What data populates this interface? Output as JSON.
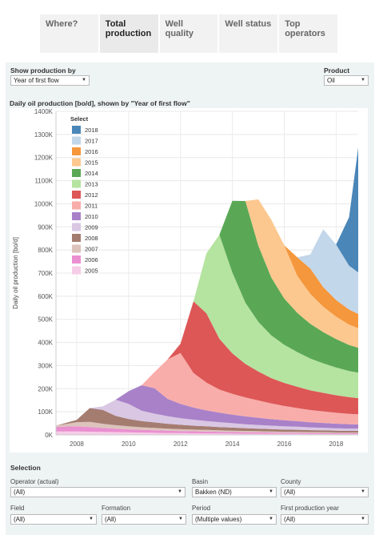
{
  "tabs": [
    {
      "label": "Where?",
      "active": false
    },
    {
      "label": "Total production",
      "active": true
    },
    {
      "label": "Well quality",
      "active": false
    },
    {
      "label": "Well status",
      "active": false
    },
    {
      "label": "Top operators",
      "active": false
    }
  ],
  "controls": {
    "show_production_by_label": "Show production by",
    "show_production_by_value": "Year of first flow",
    "product_label": "Product",
    "product_value": "Oil"
  },
  "chart_title": "Daily oil production [bo/d], shown by \"Year of first flow\"",
  "legend": {
    "title": "Select",
    "items": [
      {
        "label": "2018",
        "color": "#4a86b8"
      },
      {
        "label": "2017",
        "color": "#c3d7ea"
      },
      {
        "label": "2016",
        "color": "#f5973c"
      },
      {
        "label": "2015",
        "color": "#fcc88f"
      },
      {
        "label": "2014",
        "color": "#5aa855"
      },
      {
        "label": "2013",
        "color": "#b5e3a0"
      },
      {
        "label": "2012",
        "color": "#dd5757"
      },
      {
        "label": "2011",
        "color": "#f8adaa"
      },
      {
        "label": "2010",
        "color": "#a881c9"
      },
      {
        "label": "2009",
        "color": "#d9c7e4"
      },
      {
        "label": "2008",
        "color": "#a47c70"
      },
      {
        "label": "2007",
        "color": "#dcc3bc"
      },
      {
        "label": "2006",
        "color": "#ea8fd0"
      },
      {
        "label": "2005",
        "color": "#f6cde7"
      }
    ]
  },
  "chart_data": {
    "type": "area",
    "stacked": true,
    "title": "Daily oil production [bo/d], shown by \"Year of first flow\"",
    "ylabel": "Daily oil production [bo/d]",
    "xlabel": "",
    "ylim": [
      0,
      1400000
    ],
    "xlim": [
      2007.2,
      2018.85
    ],
    "y_ticks": [
      0,
      100000,
      200000,
      300000,
      400000,
      500000,
      600000,
      700000,
      800000,
      900000,
      1000000,
      1100000,
      1200000,
      1300000,
      1400000
    ],
    "y_tick_labels": [
      "0K",
      "100K",
      "200K",
      "300K",
      "400K",
      "500K",
      "600K",
      "700K",
      "800K",
      "900K",
      "1000K",
      "1100K",
      "1200K",
      "1300K",
      "1400K"
    ],
    "x_ticks": [
      2008,
      2010,
      2012,
      2014,
      2016,
      2018
    ],
    "x_tick_labels": [
      "2008",
      "2010",
      "2012",
      "2014",
      "2016",
      "2018"
    ],
    "grid": true,
    "legend_position": "top-left",
    "x": [
      2007.2,
      2008.0,
      2008.5,
      2009.0,
      2009.5,
      2010.0,
      2010.5,
      2011.0,
      2011.5,
      2012.0,
      2012.5,
      2013.0,
      2013.5,
      2014.0,
      2014.5,
      2015.0,
      2015.5,
      2016.0,
      2016.5,
      2017.0,
      2017.5,
      2018.0,
      2018.5,
      2018.85
    ],
    "series": [
      {
        "name": "2005",
        "values": [
          15000,
          15000,
          14000,
          13000,
          12000,
          11000,
          10000,
          9000,
          8000,
          7500,
          7000,
          6500,
          6000,
          5500,
          5000,
          5000,
          4500,
          4000,
          4000,
          3500,
          3500,
          3000,
          3000,
          3000
        ]
      },
      {
        "name": "2006",
        "values": [
          20000,
          22000,
          20000,
          17000,
          15000,
          13000,
          12000,
          11000,
          10000,
          9000,
          8500,
          8000,
          7500,
          7000,
          6500,
          6000,
          5500,
          5000,
          5000,
          4500,
          4500,
          4000,
          4000,
          4000
        ]
      },
      {
        "name": "2007",
        "values": [
          5000,
          18000,
          22000,
          18000,
          15000,
          13000,
          11000,
          10000,
          9000,
          8000,
          7500,
          7000,
          6500,
          6000,
          5500,
          5000,
          4800,
          4500,
          4200,
          4000,
          3800,
          3500,
          3300,
          3200
        ]
      },
      {
        "name": "2008",
        "values": [
          0,
          10000,
          60000,
          60000,
          40000,
          32000,
          27000,
          24000,
          21000,
          19000,
          17000,
          15500,
          14000,
          13000,
          12000,
          11000,
          10000,
          9500,
          9000,
          8500,
          8000,
          7500,
          7000,
          7000
        ]
      },
      {
        "name": "2009",
        "values": [
          0,
          0,
          0,
          15000,
          70000,
          65000,
          45000,
          38000,
          33000,
          29000,
          26000,
          23000,
          21000,
          19000,
          17000,
          16000,
          15000,
          14000,
          13000,
          12000,
          11000,
          10500,
          10000,
          10000
        ]
      },
      {
        "name": "2010",
        "values": [
          0,
          0,
          0,
          0,
          0,
          55000,
          110000,
          110000,
          75000,
          62000,
          52000,
          46000,
          41000,
          37000,
          34000,
          31000,
          28000,
          26000,
          24000,
          22000,
          21000,
          20000,
          19000,
          18000
        ]
      },
      {
        "name": "2011",
        "values": [
          0,
          0,
          0,
          0,
          0,
          0,
          0,
          70000,
          170000,
          220000,
          150000,
          120000,
          100000,
          90000,
          82000,
          75000,
          68000,
          62000,
          57000,
          53000,
          50000,
          47000,
          45000,
          44000
        ]
      },
      {
        "name": "2012",
        "values": [
          0,
          0,
          0,
          0,
          0,
          0,
          0,
          0,
          0,
          40000,
          310000,
          300000,
          220000,
          175000,
          145000,
          125000,
          110000,
          100000,
          92000,
          85000,
          80000,
          76000,
          72000,
          70000
        ]
      },
      {
        "name": "2013",
        "values": [
          0,
          0,
          0,
          0,
          0,
          0,
          0,
          0,
          0,
          0,
          0,
          260000,
          450000,
          350000,
          265000,
          215000,
          185000,
          165000,
          150000,
          138000,
          128000,
          120000,
          113000,
          110000
        ]
      },
      {
        "name": "2014",
        "values": [
          0,
          0,
          0,
          0,
          0,
          0,
          0,
          0,
          0,
          0,
          0,
          0,
          0,
          310000,
          440000,
          330000,
          250000,
          200000,
          170000,
          150000,
          135000,
          123000,
          113000,
          108000
        ]
      },
      {
        "name": "2015",
        "values": [
          0,
          0,
          0,
          0,
          0,
          0,
          0,
          0,
          0,
          0,
          0,
          0,
          0,
          0,
          0,
          200000,
          250000,
          230000,
          160000,
          130000,
          110000,
          97000,
          88000,
          84000
        ]
      },
      {
        "name": "2016",
        "values": [
          0,
          0,
          0,
          0,
          0,
          0,
          0,
          0,
          0,
          0,
          0,
          0,
          0,
          0,
          0,
          0,
          0,
          0,
          80000,
          110000,
          85000,
          72000,
          65000,
          62000
        ]
      },
      {
        "name": "2017",
        "values": [
          0,
          0,
          0,
          0,
          0,
          0,
          0,
          0,
          0,
          0,
          0,
          0,
          0,
          0,
          0,
          0,
          0,
          0,
          0,
          60000,
          250000,
          240000,
          190000,
          180000
        ]
      },
      {
        "name": "2018",
        "values": [
          0,
          0,
          0,
          0,
          0,
          0,
          0,
          0,
          0,
          0,
          0,
          0,
          0,
          0,
          0,
          0,
          0,
          0,
          0,
          0,
          0,
          0,
          210000,
          540000
        ]
      }
    ]
  },
  "selection": {
    "title": "Selection",
    "filters": [
      {
        "label": "Operator (actual)",
        "value": "(All)"
      },
      {
        "label": "Basin",
        "value": "Bakken (ND)"
      },
      {
        "label": "County",
        "value": "(All)"
      },
      {
        "label": "Field",
        "value": "(All)"
      },
      {
        "label": "Formation",
        "value": "(All)"
      },
      {
        "label": "Period",
        "value": "(Multiple values)"
      },
      {
        "label": "First production year",
        "value": "(All)"
      }
    ]
  }
}
